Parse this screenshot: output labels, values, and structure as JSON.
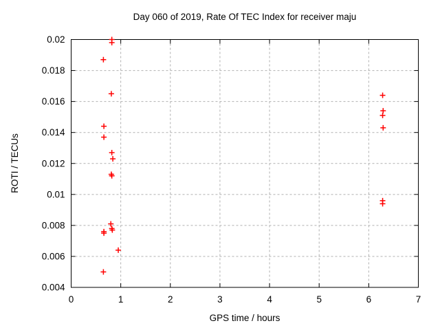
{
  "chart_data": {
    "type": "scatter",
    "title": "Day 060 of 2019, Rate Of TEC Index for receiver maju",
    "xlabel": "GPS time / hours",
    "ylabel": "ROTI / TECUs",
    "xlim": [
      0,
      7
    ],
    "ylim": [
      0.004,
      0.02
    ],
    "xticks": [
      0,
      1,
      2,
      3,
      4,
      5,
      6,
      7
    ],
    "xtick_labels": [
      "0",
      "1",
      "2",
      "3",
      "4",
      "5",
      "6",
      "7"
    ],
    "yticks": [
      0.004,
      0.006,
      0.008,
      0.01,
      0.012,
      0.014,
      0.016,
      0.018,
      0.02
    ],
    "ytick_labels": [
      "0.004",
      "0.006",
      "0.008",
      "0.01",
      "0.012",
      "0.014",
      "0.016",
      "0.018",
      "0.02"
    ],
    "grid": true,
    "legend": "none",
    "marker": {
      "shape": "plus",
      "color": "#ff0000",
      "size": 4
    },
    "colors": {
      "marker": "#ff0000",
      "grid": "#b0b0b0",
      "axis": "#000000",
      "background": "#ffffff"
    },
    "series": [
      {
        "name": "ROTI",
        "points": [
          [
            0.82,
            0.02
          ],
          [
            0.82,
            0.0198
          ],
          [
            0.65,
            0.0187
          ],
          [
            0.81,
            0.0165
          ],
          [
            0.66,
            0.0144
          ],
          [
            0.66,
            0.0137
          ],
          [
            0.82,
            0.0127
          ],
          [
            0.84,
            0.0123
          ],
          [
            0.81,
            0.0113
          ],
          [
            0.82,
            0.0112
          ],
          [
            0.8,
            0.0081
          ],
          [
            0.82,
            0.0078
          ],
          [
            0.83,
            0.0077
          ],
          [
            0.66,
            0.0076
          ],
          [
            0.66,
            0.0075
          ],
          [
            0.95,
            0.0064
          ],
          [
            0.65,
            0.005
          ],
          [
            6.28,
            0.0164
          ],
          [
            6.29,
            0.0154
          ],
          [
            6.28,
            0.0151
          ],
          [
            6.29,
            0.0143
          ],
          [
            6.28,
            0.0096
          ],
          [
            6.28,
            0.0094
          ]
        ]
      }
    ]
  }
}
